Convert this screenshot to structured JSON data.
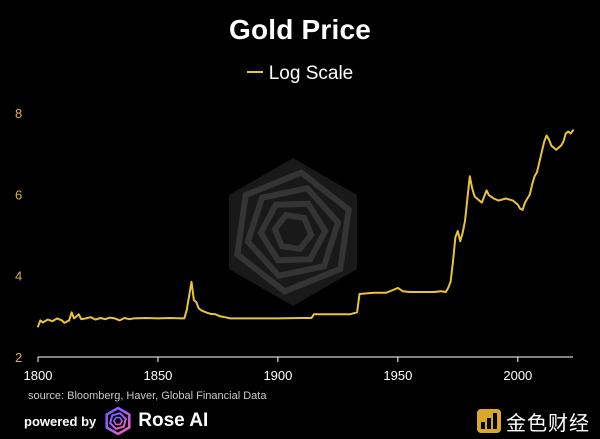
{
  "chart_data": {
    "type": "line",
    "title": "Gold Price",
    "xlabel": "",
    "ylabel": "",
    "xlim": [
      1800,
      2023
    ],
    "ylim": [
      2,
      8.3
    ],
    "x_ticks": [
      1800,
      1850,
      1900,
      1950,
      2000
    ],
    "y_ticks": [
      2,
      4,
      6,
      8
    ],
    "grid": false,
    "legend_position": "top-center",
    "series": [
      {
        "name": "Log Scale",
        "color": "#e9c43a",
        "x": [
          1800,
          1801,
          1802,
          1804,
          1806,
          1808,
          1810,
          1811,
          1813,
          1814,
          1815,
          1817,
          1818,
          1820,
          1822,
          1824,
          1826,
          1828,
          1830,
          1832,
          1834,
          1836,
          1838,
          1840,
          1845,
          1850,
          1855,
          1860,
          1861,
          1862,
          1863,
          1864,
          1865,
          1866,
          1867,
          1868,
          1870,
          1872,
          1874,
          1876,
          1878,
          1880,
          1890,
          1900,
          1910,
          1914,
          1915,
          1920,
          1925,
          1930,
          1933,
          1934,
          1940,
          1945,
          1948,
          1950,
          1952,
          1955,
          1960,
          1965,
          1968,
          1970,
          1971,
          1972,
          1973,
          1974,
          1975,
          1976,
          1977,
          1978,
          1979,
          1980,
          1981,
          1982,
          1983,
          1984,
          1985,
          1986,
          1987,
          1988,
          1990,
          1992,
          1995,
          1998,
          2000,
          2001,
          2002,
          2003,
          2004,
          2005,
          2006,
          2007,
          2008,
          2009,
          2010,
          2011,
          2012,
          2013,
          2014,
          2015,
          2016,
          2017,
          2018,
          2019,
          2020,
          2021,
          2022,
          2023
        ],
        "values": [
          2.75,
          2.9,
          2.85,
          2.92,
          2.88,
          2.95,
          2.9,
          2.84,
          2.9,
          3.1,
          2.95,
          3.05,
          2.93,
          2.95,
          2.98,
          2.92,
          2.96,
          2.93,
          2.97,
          2.95,
          2.9,
          2.96,
          2.93,
          2.95,
          2.96,
          2.95,
          2.96,
          2.95,
          2.95,
          3.15,
          3.5,
          3.85,
          3.4,
          3.35,
          3.2,
          3.15,
          3.1,
          3.06,
          3.05,
          3.0,
          2.98,
          2.95,
          2.95,
          2.95,
          2.96,
          2.96,
          3.05,
          3.05,
          3.05,
          3.05,
          3.1,
          3.55,
          3.58,
          3.58,
          3.65,
          3.7,
          3.62,
          3.6,
          3.6,
          3.6,
          3.62,
          3.6,
          3.7,
          3.85,
          4.35,
          4.95,
          5.1,
          4.85,
          5.05,
          5.35,
          5.9,
          6.45,
          6.15,
          5.95,
          5.9,
          5.85,
          5.8,
          5.95,
          6.1,
          5.98,
          5.9,
          5.85,
          5.9,
          5.85,
          5.75,
          5.65,
          5.62,
          5.8,
          5.9,
          6.0,
          6.25,
          6.45,
          6.55,
          6.8,
          7.05,
          7.3,
          7.45,
          7.35,
          7.2,
          7.15,
          7.1,
          7.15,
          7.2,
          7.3,
          7.5,
          7.55,
          7.5,
          7.58
        ]
      }
    ]
  },
  "legend": {
    "label": "Log Scale"
  },
  "footer": {
    "source": "source: Bloomberg, Haver, Global Financial Data",
    "powered_by": "powered by",
    "brand": "Rose AI",
    "watermark_brand": "金色财经"
  },
  "colors": {
    "line": "#e9c43a",
    "axis": "#ffffff",
    "tick_label": "#d8b53a",
    "background": "#000000",
    "watermark": "#3a3a3a"
  },
  "icons": {
    "center_watermark": "rose-ai-hexagon-watermark-icon",
    "brand_logo": "rose-ai-logo-icon",
    "jinse_logo": "jinse-caijing-logo-icon"
  }
}
